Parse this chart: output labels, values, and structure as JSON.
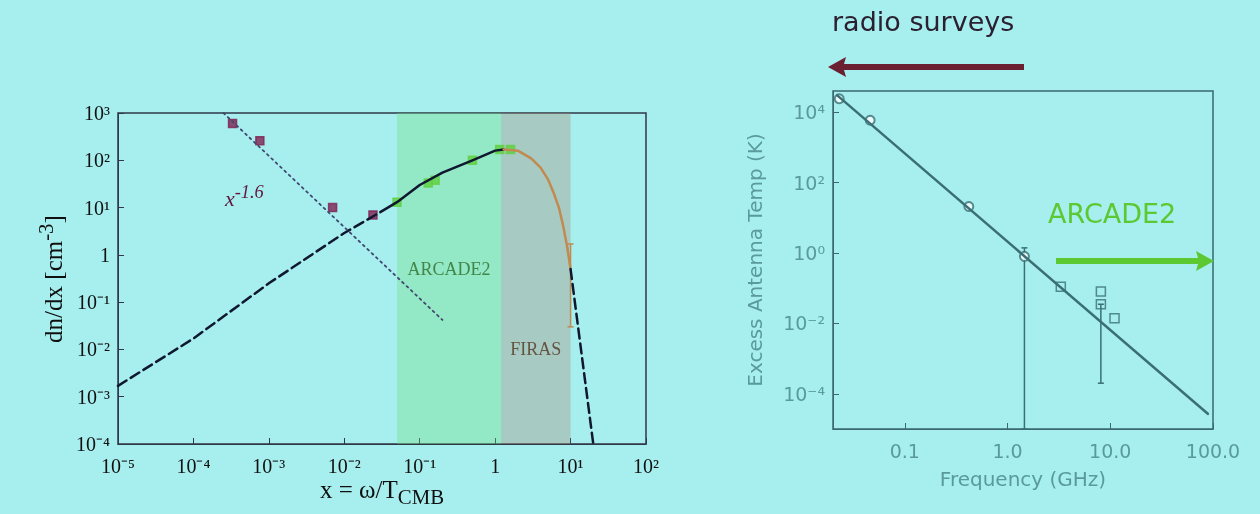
{
  "chart_data": [
    {
      "type": "line",
      "xlabel": "x = ω/T$_{CMB}$",
      "ylabel": "dn/dx [cm$^{-3}$]",
      "log": "xy",
      "xlim": [
        1e-05,
        100
      ],
      "ylim": [
        0.0001,
        1000
      ],
      "xticks": [
        {
          "value": 1e-05,
          "label": "10⁻⁵"
        },
        {
          "value": 0.0001,
          "label": "10⁻⁴"
        },
        {
          "value": 0.001,
          "label": "10⁻³"
        },
        {
          "value": 0.01,
          "label": "10⁻²"
        },
        {
          "value": 0.1,
          "label": "10⁻¹"
        },
        1,
        {
          "value": 10,
          "label": "10¹"
        },
        {
          "value": 100,
          "label": "10²"
        }
      ],
      "yticks": [
        {
          "value": 0.0001,
          "label": "10⁻⁴"
        },
        {
          "value": 0.001,
          "label": "10⁻³"
        },
        {
          "value": 0.01,
          "label": "10⁻²"
        },
        {
          "value": 0.1,
          "label": "10⁻¹"
        },
        1,
        {
          "value": 10,
          "label": "10¹"
        },
        {
          "value": 100,
          "label": "10²"
        },
        {
          "value": 1000,
          "label": "10³"
        }
      ],
      "series": [
        {
          "color": "#101830",
          "line_style": "dashed",
          "marker": "none",
          "x": [
            1e-05,
            0.0001,
            0.001,
            0.01,
            0.03
          ],
          "values": [
            0.0017,
            0.017,
            0.25,
            2.9,
            8
          ]
        },
        {
          "color": "#101830",
          "line_style": "solid",
          "marker": "none",
          "x": [
            0.03,
            0.05,
            0.1,
            0.2,
            0.5,
            1,
            1.3
          ],
          "values": [
            8,
            13,
            30,
            55,
            100,
            160,
            170
          ]
        },
        {
          "color": "#c08a50",
          "line_style": "solid",
          "marker": "none",
          "x": [
            1.3,
            2,
            3,
            4,
            5,
            6,
            7,
            8,
            9,
            10
          ],
          "values": [
            170,
            160,
            110,
            70,
            40,
            20,
            10,
            4,
            1.5,
            0.5
          ],
          "errors": [
            null,
            null,
            null,
            null,
            null,
            null,
            null,
            null,
            null,
            [
              0.03,
              1.7
            ]
          ]
        },
        {
          "color": "#101830",
          "line_style": "dashed",
          "marker": "none",
          "x": [
            10,
            20
          ],
          "values": [
            0.5,
            0.0001
          ]
        },
        {
          "color": "#404a70",
          "line_style": "dotted",
          "marker": "none",
          "x": [
            0.00025,
            0.2
          ],
          "values": [
            1000,
            0.042
          ]
        },
        {
          "type": "scatter",
          "color": "#802050",
          "marker": "square",
          "x": [
            0.00033,
            0.00076,
            0.007,
            0.024
          ],
          "values": [
            600,
            260,
            10,
            7
          ]
        },
        {
          "type": "scatter",
          "color": "#60d040",
          "marker": "square",
          "x": [
            0.05,
            0.13,
            0.16,
            0.5,
            1.15,
            1.6
          ],
          "values": [
            13,
            33,
            38,
            100,
            170,
            170
          ]
        }
      ],
      "bands": [
        {
          "axis": "x",
          "from": 0.05,
          "to": 1.2,
          "label": "ARCADE2",
          "color": "#6fe07a"
        },
        {
          "axis": "x",
          "from": 1.2,
          "to": 10,
          "label": "FIRAS",
          "color": "#a88a70"
        }
      ],
      "annotations": [
        "x$^{-1.6}$"
      ]
    },
    {
      "type": "line",
      "xlabel": "Frequency (GHz)",
      "ylabel": "Excess Antenna Temp (K)",
      "log": "xy",
      "xlim": [
        0.02,
        100
      ],
      "ylim": [
        1e-05,
        40000
      ],
      "xticks": [
        0.1,
        {
          "value": 1,
          "label": "1.0"
        },
        {
          "value": 10,
          "label": "10.0"
        },
        {
          "value": 100,
          "label": "100.0"
        }
      ],
      "yticks": [
        {
          "value": 0.0001,
          "label": "10⁻⁴"
        },
        {
          "value": 0.01,
          "label": "10⁻²"
        },
        {
          "value": 1,
          "label": "10⁰"
        },
        {
          "value": 100,
          "label": "10²"
        },
        {
          "value": 10000,
          "label": "10⁴"
        }
      ],
      "series": [
        {
          "color": "#3a7075",
          "line_style": "solid",
          "marker": "none",
          "x": [
            0.022,
            89
          ],
          "values": [
            30000,
            2.7e-05
          ]
        },
        {
          "type": "scatter",
          "color": "#3a7075",
          "marker": "circle",
          "x": [
            0.023,
            0.046,
            0.42,
            1.46
          ],
          "values": [
            24000,
            5900,
            21,
            0.8
          ],
          "errors": [
            null,
            null,
            null,
            [
              1e-05,
              1.4
            ]
          ]
        },
        {
          "type": "scatter",
          "color": "#3a7075",
          "marker": "square",
          "x": [
            3.3,
            8.1,
            8.1,
            11
          ],
          "values": [
            0.11,
            0.08,
            0.035,
            0.014
          ],
          "errors": [
            null,
            null,
            [
              0.0002,
              0.035
            ],
            null
          ]
        }
      ],
      "annotations": [
        "radio surveys",
        "ARCADE2"
      ]
    }
  ]
}
